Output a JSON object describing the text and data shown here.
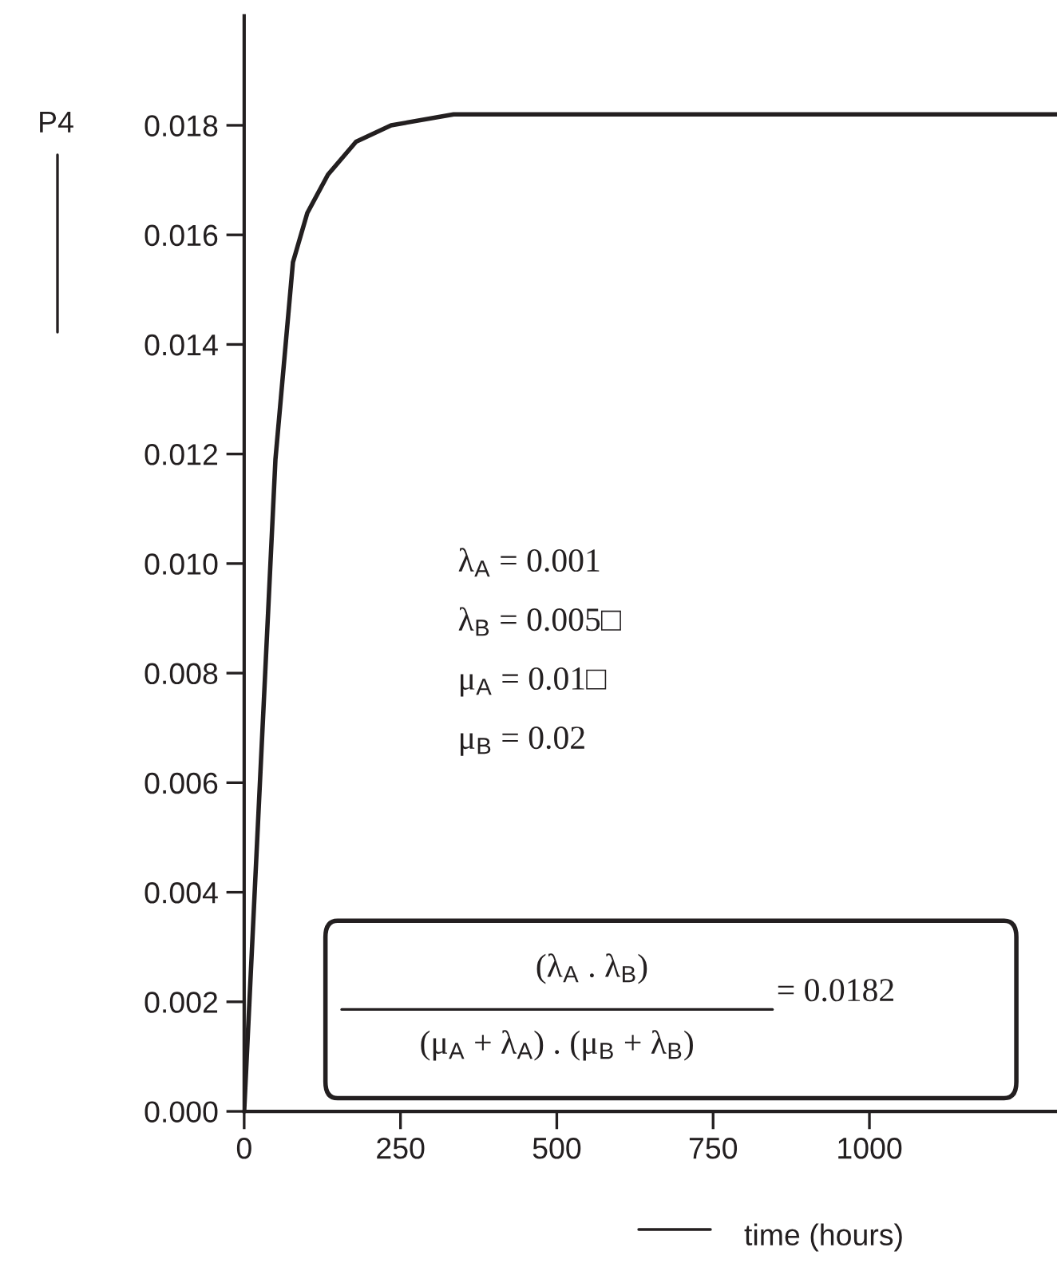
{
  "chart_data": {
    "type": "line",
    "xlabel": "time (hours)",
    "ylabel": "P4",
    "x": [
      0,
      50,
      78,
      101,
      134,
      179,
      235,
      335,
      600,
      1000,
      1300
    ],
    "series": [
      {
        "color": "#231f20",
        "values": [
          0,
          0.0119,
          0.0155,
          0.0164,
          0.0171,
          0.0177,
          0.018,
          0.0182,
          0.0182,
          0.0182,
          0.0182
        ]
      }
    ],
    "xlim": [
      0,
      1300
    ],
    "ylim": [
      0,
      0.02
    ],
    "xticks": [
      0,
      250,
      500,
      750,
      1000
    ],
    "yticks": [
      {
        "value": 0,
        "label": "0.000"
      },
      {
        "value": 0.002,
        "label": "0.002"
      },
      {
        "value": 0.004,
        "label": "0.004"
      },
      {
        "value": 0.006,
        "label": "0.006"
      },
      {
        "value": 0.008,
        "label": "0.008"
      },
      {
        "value": 0.01,
        "label": "0.010"
      },
      {
        "value": 0.012,
        "label": "0.012"
      },
      {
        "value": 0.014,
        "label": "0.014"
      },
      {
        "value": 0.016,
        "label": "0.016"
      },
      {
        "value": 0.018,
        "label": "0.018"
      }
    ],
    "grid": false,
    "legend": false,
    "marker": "none",
    "line_style": "solid",
    "annotations": [
      "λ$_{A}$ = 0.001",
      "λ$_{B}$ = 0.005□",
      "μ$_{A}$ = 0.01□",
      "μ$_{B}$ = 0.02",
      "(λ$_{A}$ . λ$_{B}$)",
      "(μ$_{A}$ + λ$_{A}$) . (μ$_{B}$ + λ$_{B}$)",
      "= 0.0182"
    ]
  }
}
